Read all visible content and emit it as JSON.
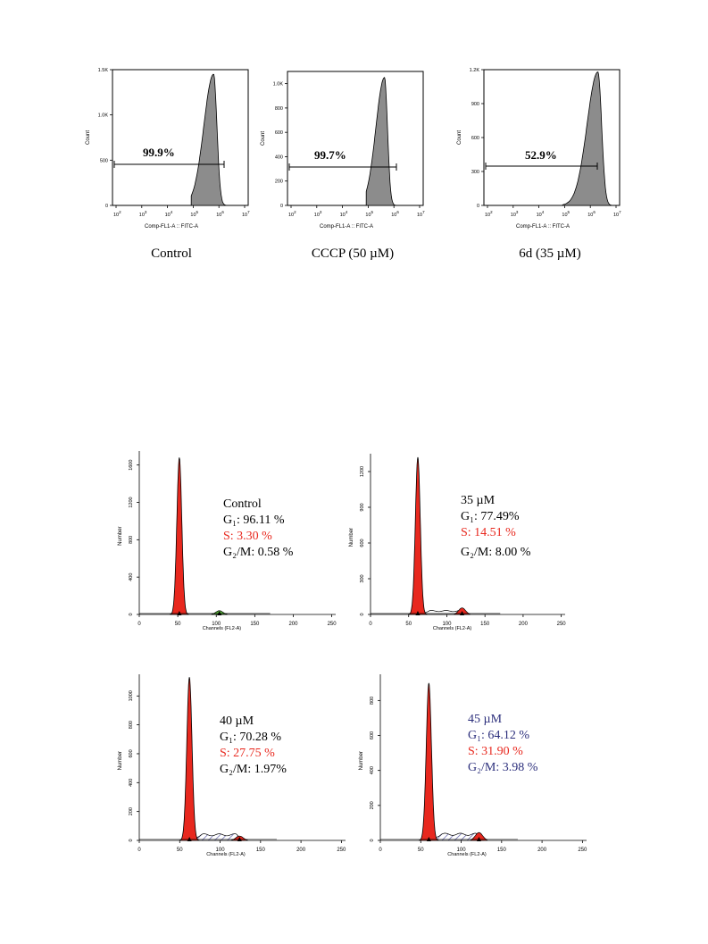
{
  "flow_panels": [
    {
      "label": "Control",
      "percent": "99.9%",
      "y_ticks": [
        "0",
        "500",
        "1.0K",
        "1.5K"
      ],
      "y_max": 1500,
      "x_tick_powers": [
        "2",
        "3",
        "4",
        "5",
        "6",
        "7"
      ],
      "ylabel": "Count",
      "xlabel": "Comp-FL1-A :: FITC-A"
    },
    {
      "label": "CCCP (50 µM)",
      "percent": "99.7%",
      "y_ticks": [
        "0",
        "200",
        "400",
        "600",
        "800",
        "1.0K"
      ],
      "y_max": 1100,
      "x_tick_powers": [
        "2",
        "3",
        "4",
        "5",
        "6",
        "7"
      ],
      "ylabel": "Count",
      "xlabel": "Comp-FL1-A :: FITC-A"
    },
    {
      "label": "6d (35 µM)",
      "percent": "52.9%",
      "y_ticks": [
        "0",
        "300",
        "600",
        "900",
        "1.2K"
      ],
      "y_max": 1200,
      "x_tick_powers": [
        "2",
        "3",
        "4",
        "5",
        "6",
        "7"
      ],
      "ylabel": "Count",
      "xlabel": "Comp-FL1-A :: FITC-A"
    }
  ],
  "cycle_panels": [
    {
      "title": "Control",
      "g1": "G₁: 96.11 %",
      "s": "S: 3.30 %",
      "g2m": "G₂/M: 0.58 %",
      "title_color": "#000000",
      "g1_color": "#000000",
      "s_color": "#e8281e",
      "g2m_color": "#000000",
      "y_ticks": [
        "0",
        "400",
        "800",
        "1200",
        "1600"
      ],
      "y_max": 1750,
      "x_ticks": [
        "0",
        "50",
        "100",
        "150",
        "200",
        "250"
      ],
      "ylabel": "Number",
      "xlabel": "Channels (FL2-A)"
    },
    {
      "title": "35 µM",
      "g1": "G₁: 77.49%",
      "s": "S: 14.51 %",
      "g2m": "G₂/M: 8.00 %",
      "title_color": "#000000",
      "g1_color": "#000000",
      "s_color": "#e8281e",
      "g2m_color": "#000000",
      "y_ticks": [
        "0",
        "300",
        "600",
        "900",
        "1200"
      ],
      "y_max": 1350,
      "x_ticks": [
        "0",
        "50",
        "100",
        "150",
        "200",
        "250"
      ],
      "ylabel": "Number",
      "xlabel": "Channels (FL2-A)"
    },
    {
      "title": "40 µM",
      "g1": "G₁: 70.28 %",
      "s": "S: 27.75 %",
      "g2m": "G₂/M: 1.97%",
      "title_color": "#000000",
      "g1_color": "#000000",
      "s_color": "#e8281e",
      "g2m_color": "#000000",
      "y_ticks": [
        "0",
        "200",
        "400",
        "600",
        "800",
        "1000"
      ],
      "y_max": 1150,
      "x_ticks": [
        "0",
        "50",
        "100",
        "150",
        "200",
        "250"
      ],
      "ylabel": "Number",
      "xlabel": "Channels (FL2-A)"
    },
    {
      "title": "45 µM",
      "g1": "G₁: 64.12 %",
      "s": "S: 31.90 %",
      "g2m": "G₂/M: 3.98 %",
      "title_color": "#2c2f7c",
      "g1_color": "#2c2f7c",
      "s_color": "#e8281e",
      "g2m_color": "#2c2f7c",
      "y_ticks": [
        "0",
        "200",
        "400",
        "600",
        "800"
      ],
      "y_max": 950,
      "x_ticks": [
        "0",
        "50",
        "100",
        "150",
        "200",
        "250"
      ],
      "ylabel": "Number",
      "xlabel": "Channels (FL2-A)"
    }
  ],
  "chart_data": [
    {
      "type": "area",
      "title": "Control",
      "xlabel": "Comp-FL1-A :: FITC-A",
      "ylabel": "Count",
      "x_scale": "log",
      "x_range": [
        100,
        10000000
      ],
      "ylim": [
        0,
        1500
      ],
      "peak": {
        "x": 750000,
        "count": 1450
      },
      "gate_percent": "99.9%"
    },
    {
      "type": "area",
      "title": "CCCP (50 µM)",
      "xlabel": "Comp-FL1-A :: FITC-A",
      "ylabel": "Count",
      "x_scale": "log",
      "x_range": [
        100,
        10000000
      ],
      "ylim": [
        0,
        1100
      ],
      "peak": {
        "x": 400000,
        "count": 1050
      },
      "gate_percent": "99.7%"
    },
    {
      "type": "area",
      "title": "6d (35 µM)",
      "xlabel": "Comp-FL1-A :: FITC-A",
      "ylabel": "Count",
      "x_scale": "log",
      "x_range": [
        100,
        10000000
      ],
      "ylim": [
        0,
        1200
      ],
      "peak": {
        "x": 1500000,
        "count": 1180
      },
      "gate_percent": "52.9%"
    },
    {
      "type": "area",
      "title": "Control",
      "xlabel": "Channels (FL2-A)",
      "ylabel": "Number",
      "xlim": [
        0,
        250
      ],
      "ylim": [
        0,
        1750
      ],
      "g1_peak": {
        "channel": 52,
        "number": 1680
      },
      "g2m_peak": {
        "channel": 104,
        "number": 40
      },
      "G1": 96.11,
      "S": 3.3,
      "G2M": 0.58
    },
    {
      "type": "area",
      "title": "35 µM",
      "xlabel": "Channels (FL2-A)",
      "ylabel": "Number",
      "xlim": [
        0,
        250
      ],
      "ylim": [
        0,
        1350
      ],
      "g1_peak": {
        "channel": 62,
        "number": 1320
      },
      "g2m_peak": {
        "channel": 120,
        "number": 55
      },
      "G1": 77.49,
      "S": 14.51,
      "G2M": 8.0
    },
    {
      "type": "area",
      "title": "40 µM",
      "xlabel": "Channels (FL2-A)",
      "ylabel": "Number",
      "xlim": [
        0,
        250
      ],
      "ylim": [
        0,
        1150
      ],
      "g1_peak": {
        "channel": 62,
        "number": 1130
      },
      "g2m_peak": {
        "channel": 124,
        "number": 30
      },
      "G1": 70.28,
      "S": 27.75,
      "G2M": 1.97
    },
    {
      "type": "area",
      "title": "45 µM",
      "xlabel": "Channels (FL2-A)",
      "ylabel": "Number",
      "xlim": [
        0,
        250
      ],
      "ylim": [
        0,
        950
      ],
      "g1_peak": {
        "channel": 60,
        "number": 900
      },
      "g2m_peak": {
        "channel": 122,
        "number": 45
      },
      "G1": 64.12,
      "S": 31.9,
      "G2M": 3.98
    }
  ]
}
